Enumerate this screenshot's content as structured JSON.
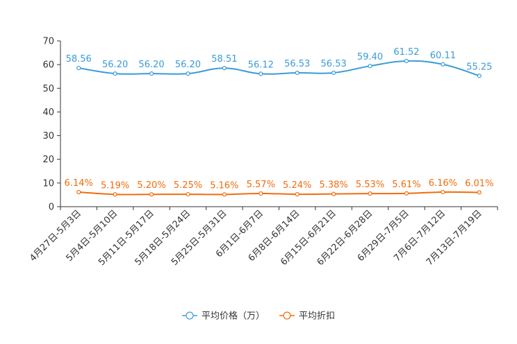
{
  "chart_data": {
    "type": "line",
    "title": "",
    "xlabel": "",
    "ylabel": "",
    "ylim": [
      0,
      70
    ],
    "yticks": [
      0,
      10,
      20,
      30,
      40,
      50,
      60,
      70
    ],
    "grid": false,
    "legend_position": "bottom-center",
    "categories": [
      "4月27日-5月3日",
      "5月4日-5月10日",
      "5月11日-5月17日",
      "5月18日-5月24日",
      "5月25日-5月31日",
      "6月1日-6月7日",
      "6月8日-6月14日",
      "6月15日-6月21日",
      "6月22日-6月28日",
      "6月29日-7月5日",
      "7月6日-7月12日",
      "7月13日-7月19日"
    ],
    "series": [
      {
        "name": "平均价格（万）",
        "color": "#3a9bd5",
        "values": [
          58.56,
          56.2,
          56.2,
          56.2,
          58.51,
          56.12,
          56.53,
          56.53,
          59.4,
          61.52,
          60.11,
          55.25
        ],
        "labels": [
          "58.56",
          "56.20",
          "56.20",
          "56.20",
          "58.51",
          "56.12",
          "56.53",
          "56.53",
          "59.40",
          "61.52",
          "60.11",
          "55.25"
        ]
      },
      {
        "name": "平均折扣",
        "color": "#f06c0d",
        "values": [
          6.14,
          5.19,
          5.2,
          5.25,
          5.16,
          5.57,
          5.24,
          5.38,
          5.53,
          5.61,
          6.16,
          6.01
        ],
        "labels": [
          "6.14%",
          "5.19%",
          "5.20%",
          "5.25%",
          "5.16%",
          "5.57%",
          "5.24%",
          "5.38%",
          "5.53%",
          "5.61%",
          "6.16%",
          "6.01%"
        ]
      }
    ]
  }
}
